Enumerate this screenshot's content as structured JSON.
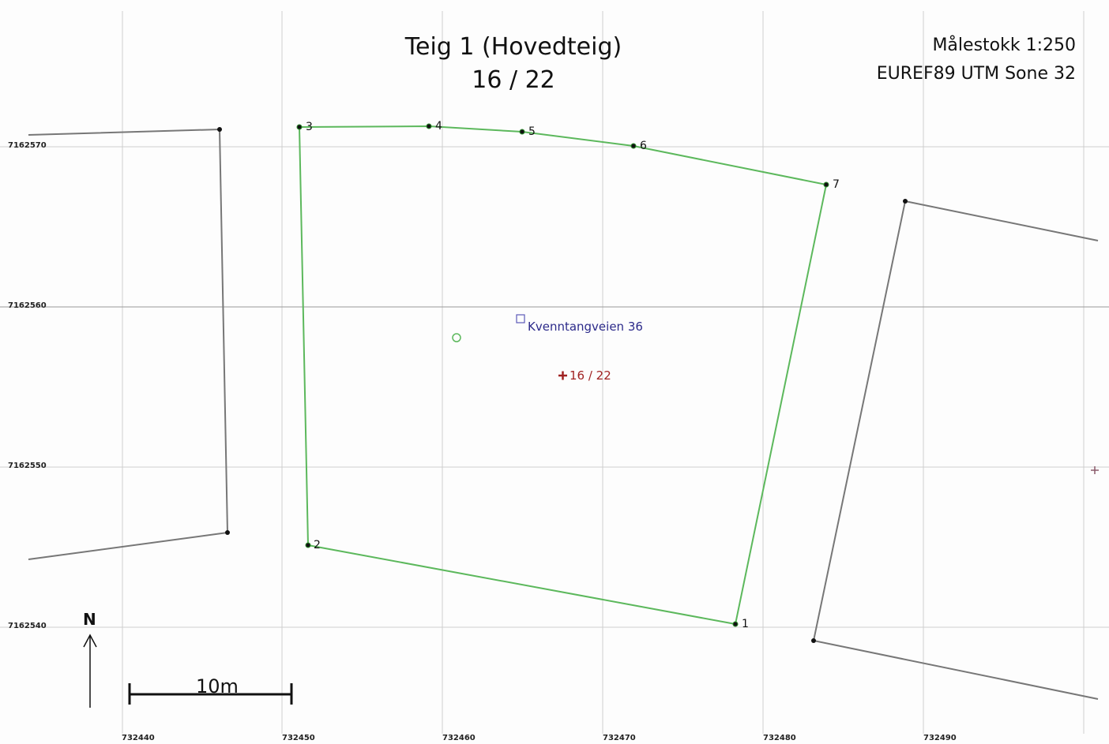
{
  "map": {
    "title": "Teig 1 (Hovedteig)",
    "subtitle": "16  /  22",
    "scale": "Målestokk 1:250",
    "crs": "EUREF89 UTM Sone 32",
    "north": "N",
    "scalebar_label": "10m",
    "address_label": "Kvenntangveien 36",
    "parcel_label": "16 / 22",
    "grid_x_labels": [
      "732440",
      "732450",
      "732460",
      "732470",
      "732480",
      "732490"
    ],
    "grid_y_labels": [
      "7162570",
      "7162560",
      "7162550",
      "7162540"
    ],
    "point_labels": [
      "1",
      "2",
      "3",
      "4",
      "5",
      "6",
      "7"
    ],
    "colors": {
      "parcel_boundary": "#5cb85c",
      "neighbour_boundary": "#777777",
      "grid": "#cccccc",
      "address": "#2c2a8a",
      "parcel_label": "#a02222"
    }
  }
}
